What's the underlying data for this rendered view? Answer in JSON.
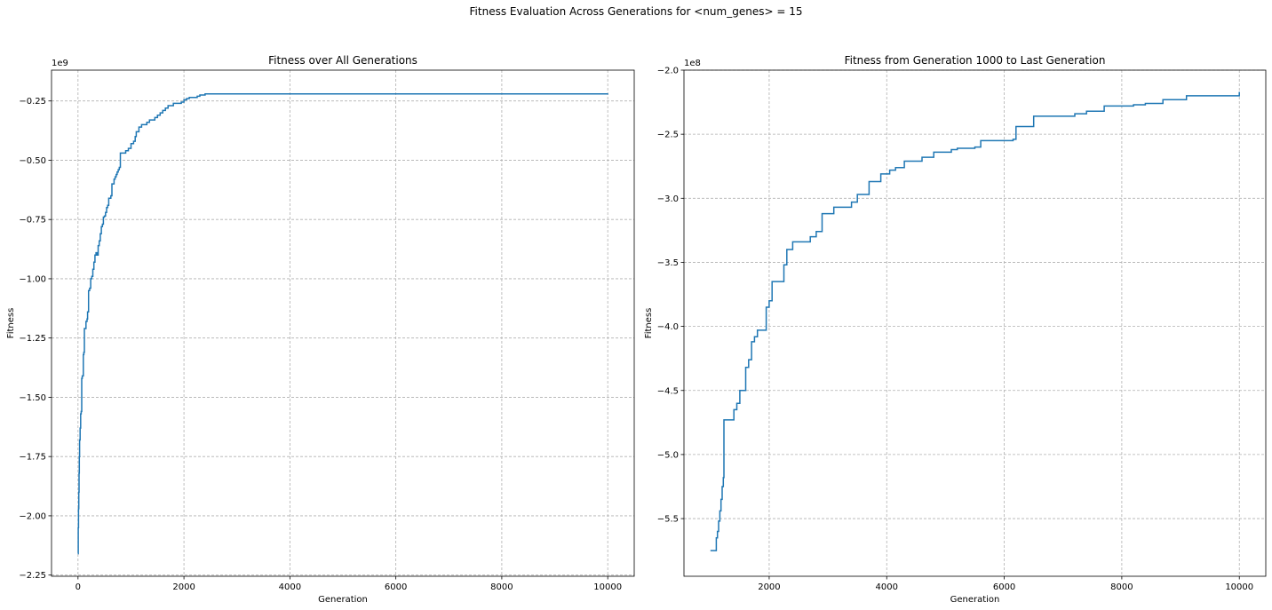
{
  "figure": {
    "suptitle": "Fitness Evaluation Across Generations for <num_genes> = 15",
    "line_color": "#1f77b4",
    "grid": true
  },
  "chart_data": [
    {
      "type": "line",
      "title": "Fitness over All Generations",
      "xlabel": "Generation",
      "ylabel": "Fitness",
      "offset_label": "1e9",
      "scale": 1000000000,
      "xlim": [
        -500,
        10500
      ],
      "ylim": [
        -2.255,
        -0.12
      ],
      "xticks": [
        0,
        2000,
        4000,
        6000,
        8000,
        10000
      ],
      "xtick_labels": [
        "0",
        "2000",
        "4000",
        "6000",
        "8000",
        "10000"
      ],
      "yticks": [
        -2.25,
        -2.0,
        -1.75,
        -1.5,
        -1.25,
        -1.0,
        -0.75,
        -0.5,
        -0.25
      ],
      "ytick_labels": [
        "−2.25",
        "−2.00",
        "−1.75",
        "−1.50",
        "−1.25",
        "−1.00",
        "−0.75",
        "−0.50",
        "−0.25"
      ],
      "series": [
        {
          "step": true,
          "x": [
            0,
            5,
            10,
            15,
            20,
            25,
            30,
            40,
            50,
            60,
            70,
            80,
            100,
            110,
            120,
            150,
            170,
            180,
            200,
            220,
            240,
            260,
            280,
            300,
            320,
            340,
            360,
            380,
            400,
            420,
            440,
            460,
            480,
            500,
            520,
            540,
            560,
            580,
            600,
            620,
            640,
            660,
            680,
            700,
            720,
            740,
            760,
            780,
            800,
            850,
            900,
            950,
            1000,
            1050,
            1080,
            1100,
            1120,
            1150,
            1170,
            1200,
            1300,
            1350,
            1400,
            1450,
            1500,
            1550,
            1600,
            1650,
            1700,
            1750,
            1800,
            1850,
            1950,
            2000,
            2050,
            2100,
            2250,
            2300,
            2400,
            2700,
            2900,
            3200,
            3400,
            3500,
            3700,
            3800,
            4000,
            4200,
            4400,
            4600,
            4900,
            5100,
            5200,
            5600,
            5700,
            6200,
            6500,
            7200,
            7400,
            7700,
            8200,
            8700,
            9100,
            10000
          ],
          "y": [
            -2.16,
            -2.05,
            -1.97,
            -1.9,
            -1.82,
            -1.75,
            -1.68,
            -1.63,
            -1.57,
            -1.56,
            -1.42,
            -1.41,
            -1.32,
            -1.31,
            -1.21,
            -1.18,
            -1.17,
            -1.14,
            -1.05,
            -1.04,
            -1.0,
            -0.99,
            -0.96,
            -0.93,
            -0.9,
            -0.89,
            -0.9,
            -0.86,
            -0.84,
            -0.81,
            -0.78,
            -0.77,
            -0.74,
            -0.735,
            -0.72,
            -0.7,
            -0.69,
            -0.66,
            -0.66,
            -0.65,
            -0.6,
            -0.6,
            -0.58,
            -0.57,
            -0.56,
            -0.55,
            -0.54,
            -0.53,
            -0.47,
            -0.47,
            -0.46,
            -0.45,
            -0.43,
            -0.42,
            -0.4,
            -0.38,
            -0.38,
            -0.36,
            -0.36,
            -0.35,
            -0.34,
            -0.33,
            -0.33,
            -0.32,
            -0.31,
            -0.3,
            -0.29,
            -0.28,
            -0.27,
            -0.27,
            -0.26,
            -0.26,
            -0.255,
            -0.245,
            -0.24,
            -0.235,
            -0.23,
            -0.225,
            -0.22,
            -0.22,
            -0.22,
            -0.22,
            -0.22,
            -0.22,
            -0.22,
            -0.22,
            -0.22,
            -0.22,
            -0.22,
            -0.22,
            -0.22,
            -0.22,
            -0.22,
            -0.22,
            -0.22,
            -0.22,
            -0.22,
            -0.22,
            -0.22,
            -0.22,
            -0.22,
            -0.22,
            -0.22,
            -0.218
          ]
        }
      ]
    },
    {
      "type": "line",
      "title": "Fitness from Generation 1000 to Last Generation",
      "xlabel": "Generation",
      "ylabel": "Fitness",
      "offset_label": "1e8",
      "scale": 100000000,
      "xlim": [
        550,
        10450
      ],
      "ylim": [
        -5.95,
        -2.0
      ],
      "xticks": [
        2000,
        4000,
        6000,
        8000,
        10000
      ],
      "xtick_labels": [
        "2000",
        "4000",
        "6000",
        "8000",
        "10000"
      ],
      "yticks": [
        -5.5,
        -5.0,
        -4.5,
        -4.0,
        -3.5,
        -3.0,
        -2.5,
        -2.0
      ],
      "ytick_labels": [
        "−5.5",
        "−5.0",
        "−4.5",
        "−4.0",
        "−3.5",
        "−3.0",
        "−2.5",
        "−2.0"
      ],
      "series": [
        {
          "step": true,
          "x": [
            1000,
            1100,
            1120,
            1140,
            1160,
            1180,
            1200,
            1220,
            1230,
            1400,
            1450,
            1500,
            1600,
            1650,
            1700,
            1750,
            1800,
            1950,
            2000,
            2050,
            2250,
            2300,
            2400,
            2700,
            2800,
            2900,
            3100,
            3400,
            3500,
            3700,
            3900,
            4050,
            4150,
            4300,
            4600,
            4800,
            5100,
            5200,
            5500,
            5600,
            6150,
            6200,
            6500,
            7200,
            7400,
            7700,
            8200,
            8400,
            8700,
            9100,
            10000
          ],
          "y": [
            -5.75,
            -5.65,
            -5.6,
            -5.52,
            -5.44,
            -5.35,
            -5.25,
            -5.18,
            -4.73,
            -4.65,
            -4.6,
            -4.5,
            -4.32,
            -4.26,
            -4.12,
            -4.08,
            -4.03,
            -3.85,
            -3.8,
            -3.65,
            -3.52,
            -3.4,
            -3.34,
            -3.3,
            -3.26,
            -3.12,
            -3.07,
            -3.03,
            -2.97,
            -2.87,
            -2.81,
            -2.78,
            -2.76,
            -2.71,
            -2.68,
            -2.64,
            -2.62,
            -2.61,
            -2.6,
            -2.55,
            -2.54,
            -2.44,
            -2.36,
            -2.34,
            -2.32,
            -2.28,
            -2.27,
            -2.26,
            -2.23,
            -2.2,
            -2.17
          ]
        }
      ]
    }
  ]
}
